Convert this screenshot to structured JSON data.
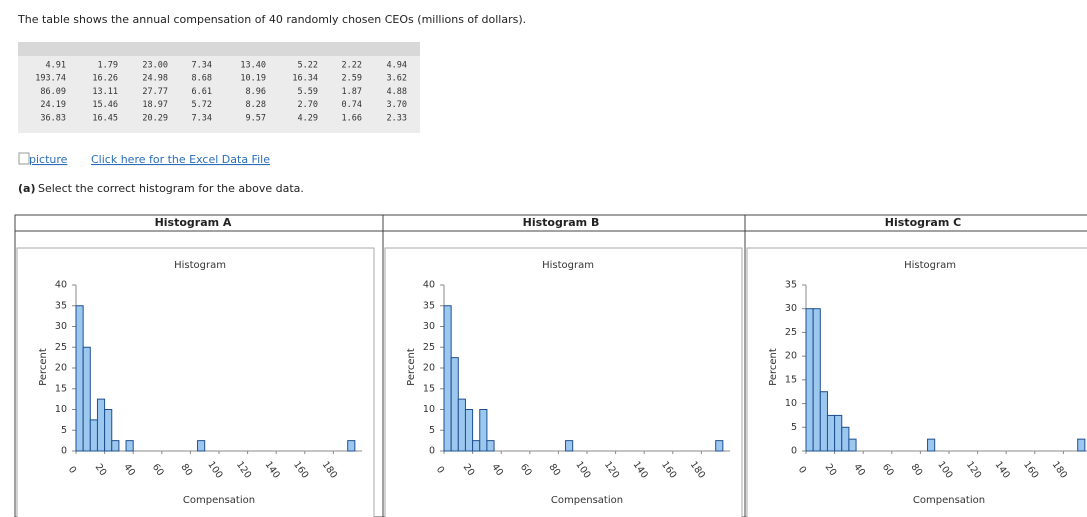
{
  "intro": "The table shows the annual compensation of 40 randomly chosen CEOs (millions of dollars).",
  "table": {
    "rows": [
      [
        "4.91",
        "1.79",
        "23.00",
        "7.34",
        "13.40",
        "5.22",
        "2.22",
        "4.94"
      ],
      [
        "193.74",
        "16.26",
        "24.98",
        "8.68",
        "10.19",
        "16.34",
        "2.59",
        "3.62"
      ],
      [
        "86.09",
        "13.11",
        "27.77",
        "6.61",
        "8.96",
        "5.59",
        "1.87",
        "4.88"
      ],
      [
        "24.19",
        "15.46",
        "18.97",
        "5.72",
        "8.28",
        "2.70",
        "0.74",
        "3.70"
      ],
      [
        "36.83",
        "16.45",
        "20.29",
        "7.34",
        "9.57",
        "4.29",
        "1.66",
        "2.33"
      ]
    ]
  },
  "image_alt": "picture",
  "link": "Click here for the Excel Data File",
  "question": {
    "label": "(a)",
    "text": "Select the correct histogram for the above data."
  },
  "chart_data": [
    {
      "type": "histogram",
      "heading": "Histogram A",
      "title": "Histogram",
      "xlabel": "Compensation",
      "ylabel": "Percent",
      "color": "#9cc8f0",
      "bins": [
        0,
        5,
        10,
        15,
        20,
        25,
        30,
        35,
        40,
        45,
        50,
        55,
        60,
        65,
        70,
        75,
        80,
        85,
        90,
        95,
        100,
        105,
        110,
        115,
        120,
        125,
        130,
        135,
        140,
        145,
        150,
        155,
        160,
        165,
        170,
        175,
        180,
        185,
        190,
        195
      ],
      "values": [
        35,
        25,
        7.5,
        12.5,
        10,
        2.5,
        0,
        2.5,
        0,
        0,
        0,
        0,
        0,
        0,
        0,
        0,
        0,
        2.5,
        0,
        0,
        0,
        0,
        0,
        0,
        0,
        0,
        0,
        0,
        0,
        0,
        0,
        0,
        0,
        0,
        0,
        0,
        0,
        0,
        2.5
      ],
      "xlim": [
        0,
        200
      ],
      "xticks": [
        0,
        20,
        40,
        60,
        80,
        100,
        120,
        140,
        160,
        180
      ],
      "ylim": [
        0,
        40
      ],
      "yticks": [
        0,
        5,
        10,
        15,
        20,
        25,
        30,
        35,
        40
      ]
    },
    {
      "type": "histogram",
      "heading": "Histogram B",
      "title": "Histogram",
      "xlabel": "Compensation",
      "ylabel": "Percent",
      "color": "#9cc8f0",
      "bins": [
        0,
        5,
        10,
        15,
        20,
        25,
        30,
        35,
        40,
        45,
        50,
        55,
        60,
        65,
        70,
        75,
        80,
        85,
        90,
        95,
        100,
        105,
        110,
        115,
        120,
        125,
        130,
        135,
        140,
        145,
        150,
        155,
        160,
        165,
        170,
        175,
        180,
        185,
        190,
        195
      ],
      "values": [
        35,
        22.5,
        12.5,
        10,
        2.5,
        10,
        2.5,
        0,
        0,
        0,
        0,
        0,
        0,
        0,
        0,
        0,
        0,
        2.5,
        0,
        0,
        0,
        0,
        0,
        0,
        0,
        0,
        0,
        0,
        0,
        0,
        0,
        0,
        0,
        0,
        0,
        0,
        0,
        0,
        2.5
      ],
      "xlim": [
        0,
        200
      ],
      "xticks": [
        0,
        20,
        40,
        60,
        80,
        100,
        120,
        140,
        160,
        180
      ],
      "ylim": [
        0,
        40
      ],
      "yticks": [
        0,
        5,
        10,
        15,
        20,
        25,
        30,
        35,
        40
      ]
    },
    {
      "type": "histogram",
      "heading": "Histogram C",
      "title": "Histogram",
      "xlabel": "Compensation",
      "ylabel": "Percent",
      "color": "#9cc8f0",
      "bins": [
        0,
        5,
        10,
        15,
        20,
        25,
        30,
        35,
        40,
        45,
        50,
        55,
        60,
        65,
        70,
        75,
        80,
        85,
        90,
        95,
        100,
        105,
        110,
        115,
        120,
        125,
        130,
        135,
        140,
        145,
        150,
        155,
        160,
        165,
        170,
        175,
        180,
        185,
        190,
        195
      ],
      "values": [
        30,
        30,
        12.5,
        7.5,
        7.5,
        5,
        2.5,
        0,
        0,
        0,
        0,
        0,
        0,
        0,
        0,
        0,
        0,
        2.5,
        0,
        0,
        0,
        0,
        0,
        0,
        0,
        0,
        0,
        0,
        0,
        0,
        0,
        0,
        0,
        0,
        0,
        0,
        0,
        0,
        2.5
      ],
      "xlim": [
        0,
        200
      ],
      "xticks": [
        0,
        20,
        40,
        60,
        80,
        100,
        120,
        140,
        160,
        180
      ],
      "ylim": [
        0,
        35
      ],
      "yticks": [
        0,
        5,
        10,
        15,
        20,
        25,
        30,
        35
      ]
    }
  ]
}
